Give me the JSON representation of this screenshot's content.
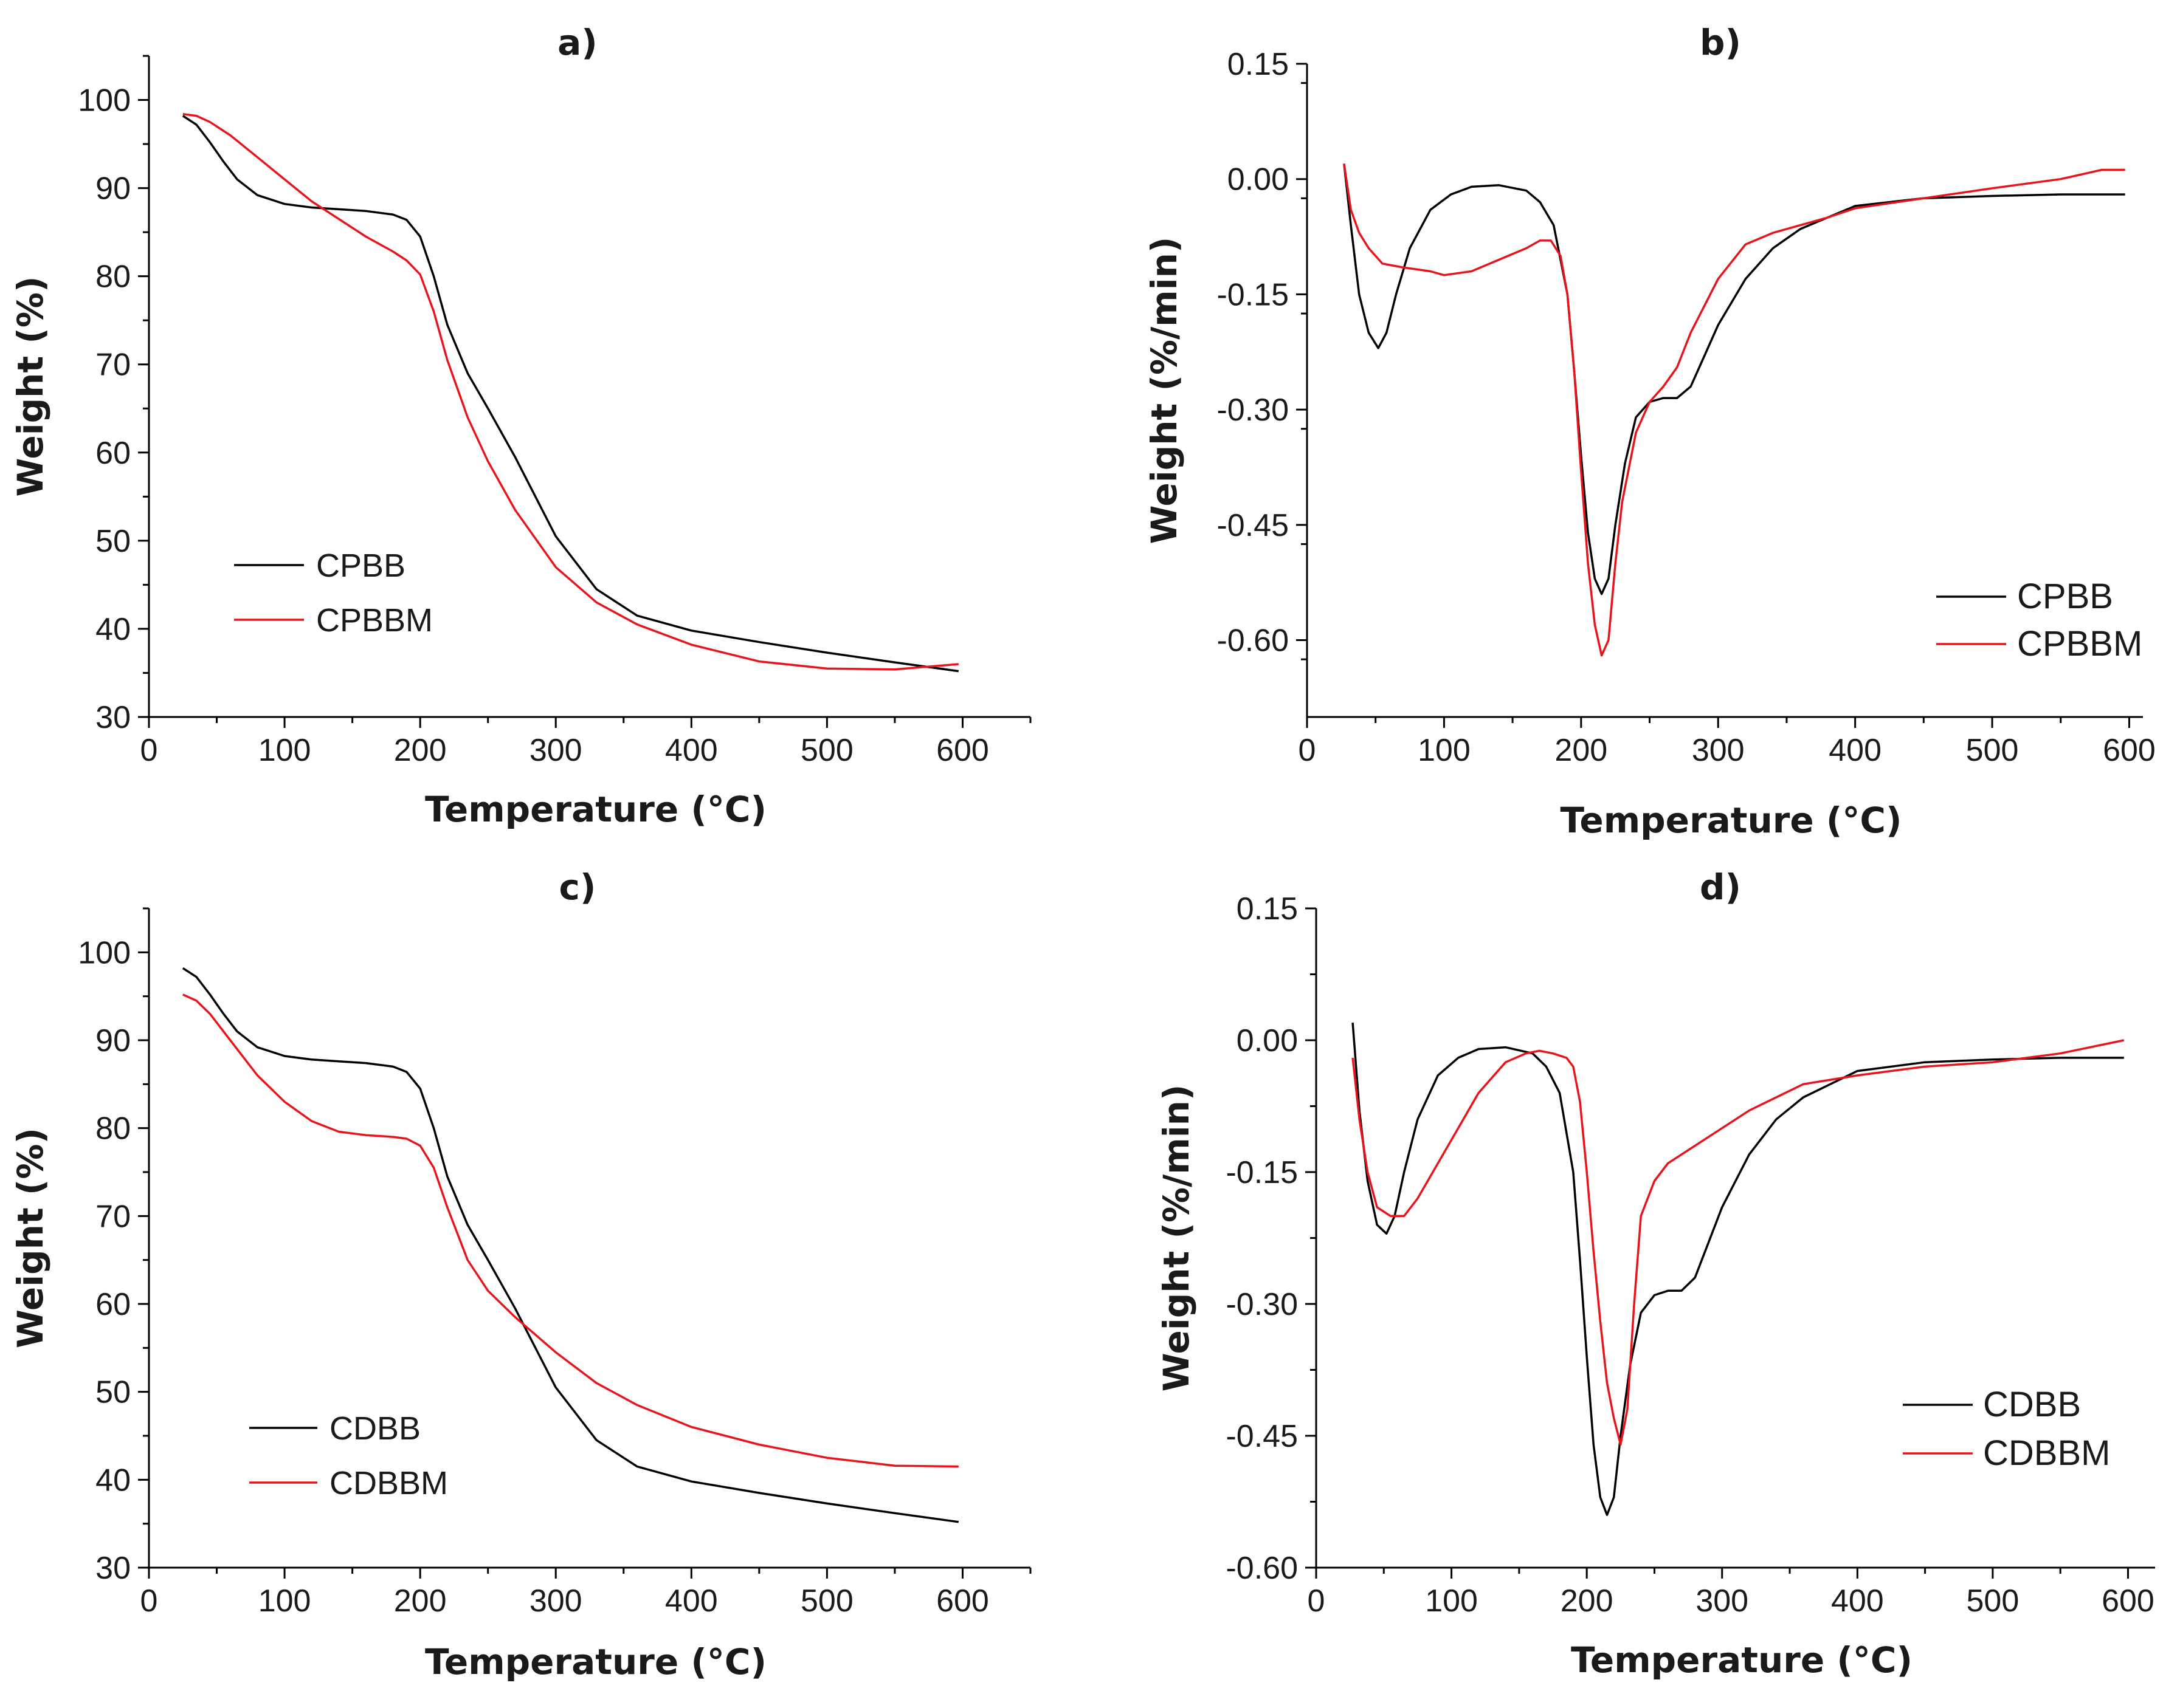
{
  "chart_data": [
    {
      "id": "a",
      "type": "line",
      "title": "a)",
      "xlabel": "Temperature (°C)",
      "ylabel": "Weight (%)",
      "xlim": [
        0,
        650
      ],
      "ylim": [
        30,
        105
      ],
      "xticks": [
        0,
        100,
        200,
        300,
        400,
        500,
        600
      ],
      "xtick_labels": [
        "0",
        "100",
        "200",
        "300",
        "400",
        "500",
        "600"
      ],
      "yticks": [
        30,
        40,
        50,
        60,
        70,
        80,
        90,
        100
      ],
      "ytick_labels": [
        "30",
        "40",
        "50",
        "60",
        "70",
        "80",
        "90",
        "100"
      ],
      "legend": "lower-left",
      "series": [
        {
          "name": "CPBB",
          "color": "#000000",
          "x": [
            25,
            35,
            45,
            55,
            65,
            80,
            100,
            120,
            140,
            160,
            180,
            190,
            200,
            210,
            220,
            235,
            250,
            270,
            300,
            330,
            360,
            400,
            450,
            500,
            550,
            597
          ],
          "y": [
            98.2,
            97.2,
            95.2,
            93.0,
            91.0,
            89.2,
            88.2,
            87.8,
            87.6,
            87.4,
            87.0,
            86.4,
            84.5,
            80.0,
            74.5,
            69.0,
            65.0,
            59.5,
            50.5,
            44.5,
            41.5,
            39.8,
            38.5,
            37.3,
            36.2,
            35.2
          ]
        },
        {
          "name": "CPBBM",
          "color": "#e8141c",
          "x": [
            25,
            35,
            45,
            60,
            80,
            100,
            120,
            140,
            160,
            180,
            190,
            200,
            210,
            220,
            235,
            250,
            270,
            300,
            330,
            360,
            400,
            450,
            500,
            550,
            597
          ],
          "y": [
            98.4,
            98.2,
            97.5,
            96.0,
            93.5,
            91.0,
            88.5,
            86.5,
            84.5,
            82.8,
            81.8,
            80.2,
            76.0,
            70.5,
            64.0,
            59.0,
            53.5,
            47.0,
            43.0,
            40.5,
            38.2,
            36.3,
            35.5,
            35.4,
            36.0
          ]
        }
      ]
    },
    {
      "id": "b",
      "type": "line",
      "title": "b)",
      "xlabel": "Temperature (°C)",
      "ylabel": "Weight (%/min)",
      "xlim": [
        0,
        610
      ],
      "ylim": [
        -0.7,
        0.15
      ],
      "xticks": [
        0,
        100,
        200,
        300,
        400,
        500,
        600
      ],
      "xtick_labels": [
        "0",
        "100",
        "200",
        "300",
        "400",
        "500",
        "600"
      ],
      "yticks": [
        0.15,
        0.0,
        -0.15,
        -0.3,
        -0.45,
        -0.6
      ],
      "ytick_labels": [
        "0.15",
        "0.00",
        "-0.15",
        "-0.30",
        "-0.45",
        "-0.60"
      ],
      "legend": "lower-right",
      "series": [
        {
          "name": "CPBB",
          "color": "#000000",
          "x": [
            27,
            32,
            38,
            45,
            52,
            58,
            65,
            75,
            90,
            105,
            120,
            140,
            160,
            170,
            180,
            190,
            195,
            200,
            205,
            210,
            215,
            220,
            225,
            232,
            240,
            250,
            260,
            270,
            280,
            290,
            300,
            320,
            340,
            360,
            380,
            400,
            450,
            500,
            550,
            597
          ],
          "y": [
            0.02,
            -0.06,
            -0.15,
            -0.2,
            -0.22,
            -0.2,
            -0.15,
            -0.09,
            -0.04,
            -0.02,
            -0.01,
            -0.008,
            -0.015,
            -0.03,
            -0.06,
            -0.15,
            -0.25,
            -0.36,
            -0.46,
            -0.52,
            -0.54,
            -0.52,
            -0.45,
            -0.37,
            -0.31,
            -0.29,
            -0.285,
            -0.285,
            -0.27,
            -0.23,
            -0.19,
            -0.13,
            -0.09,
            -0.065,
            -0.05,
            -0.035,
            -0.025,
            -0.022,
            -0.02,
            -0.02
          ]
        },
        {
          "name": "CPBBM",
          "color": "#e8141c",
          "x": [
            27,
            32,
            38,
            45,
            55,
            70,
            90,
            100,
            120,
            140,
            160,
            170,
            178,
            185,
            190,
            195,
            200,
            205,
            210,
            215,
            220,
            225,
            230,
            240,
            250,
            260,
            270,
            280,
            300,
            320,
            340,
            360,
            380,
            400,
            450,
            500,
            550,
            580,
            597
          ],
          "y": [
            0.02,
            -0.04,
            -0.07,
            -0.09,
            -0.11,
            -0.115,
            -0.12,
            -0.125,
            -0.12,
            -0.105,
            -0.09,
            -0.08,
            -0.08,
            -0.1,
            -0.15,
            -0.25,
            -0.38,
            -0.5,
            -0.58,
            -0.62,
            -0.6,
            -0.5,
            -0.42,
            -0.33,
            -0.29,
            -0.27,
            -0.245,
            -0.2,
            -0.13,
            -0.085,
            -0.07,
            -0.06,
            -0.05,
            -0.038,
            -0.025,
            -0.012,
            0.0,
            0.012,
            0.012
          ]
        }
      ]
    },
    {
      "id": "c",
      "type": "line",
      "title": "c)",
      "xlabel": "Temperature (°C)",
      "ylabel": "Weight (%)",
      "xlim": [
        0,
        650
      ],
      "ylim": [
        30,
        105
      ],
      "xticks": [
        0,
        100,
        200,
        300,
        400,
        500,
        600
      ],
      "xtick_labels": [
        "0",
        "100",
        "200",
        "300",
        "400",
        "500",
        "600"
      ],
      "yticks": [
        30,
        40,
        50,
        60,
        70,
        80,
        90,
        100
      ],
      "ytick_labels": [
        "30",
        "40",
        "50",
        "60",
        "70",
        "80",
        "90",
        "100"
      ],
      "legend": "lower-left",
      "series": [
        {
          "name": "CDBB",
          "color": "#000000",
          "x": [
            25,
            35,
            45,
            55,
            65,
            80,
            100,
            120,
            140,
            160,
            180,
            190,
            200,
            210,
            220,
            235,
            250,
            270,
            300,
            330,
            360,
            400,
            450,
            500,
            550,
            597
          ],
          "y": [
            98.2,
            97.2,
            95.2,
            93.0,
            91.0,
            89.2,
            88.2,
            87.8,
            87.6,
            87.4,
            87.0,
            86.4,
            84.5,
            80.0,
            74.5,
            69.0,
            65.0,
            59.5,
            50.5,
            44.5,
            41.5,
            39.8,
            38.5,
            37.3,
            36.2,
            35.2
          ]
        },
        {
          "name": "CDBBM",
          "color": "#e8141c",
          "x": [
            25,
            35,
            45,
            60,
            80,
            100,
            120,
            140,
            160,
            180,
            190,
            200,
            210,
            220,
            235,
            250,
            270,
            300,
            330,
            360,
            400,
            450,
            500,
            550,
            597
          ],
          "y": [
            95.2,
            94.5,
            93.0,
            90.0,
            86.0,
            83.0,
            80.8,
            79.6,
            79.2,
            79.0,
            78.8,
            78.0,
            75.5,
            71.0,
            65.0,
            61.5,
            58.5,
            54.5,
            51.0,
            48.5,
            46.0,
            44.0,
            42.5,
            41.6,
            41.5
          ]
        }
      ]
    },
    {
      "id": "d",
      "type": "line",
      "title": "d)",
      "xlabel": "Temperature (°C)",
      "ylabel": "Weight (%/min)",
      "xlim": [
        0,
        620
      ],
      "ylim": [
        -0.6,
        0.15
      ],
      "xticks": [
        0,
        100,
        200,
        300,
        400,
        500,
        600
      ],
      "xtick_labels": [
        "0",
        "100",
        "200",
        "300",
        "400",
        "500",
        "600"
      ],
      "yticks": [
        0.15,
        0.0,
        -0.15,
        -0.3,
        -0.45,
        -0.6
      ],
      "ytick_labels": [
        "0.15",
        "0.00",
        "-0.15",
        "-0.30",
        "-0.45",
        "-0.60"
      ],
      "legend": "lower-right",
      "series": [
        {
          "name": "CDBB",
          "color": "#000000",
          "x": [
            27,
            32,
            38,
            45,
            52,
            58,
            65,
            75,
            90,
            105,
            120,
            140,
            160,
            170,
            180,
            190,
            195,
            200,
            205,
            210,
            215,
            220,
            225,
            232,
            240,
            250,
            260,
            270,
            280,
            290,
            300,
            320,
            340,
            360,
            380,
            400,
            450,
            500,
            550,
            597
          ],
          "y": [
            0.02,
            -0.08,
            -0.16,
            -0.21,
            -0.22,
            -0.2,
            -0.15,
            -0.09,
            -0.04,
            -0.02,
            -0.01,
            -0.008,
            -0.015,
            -0.03,
            -0.06,
            -0.15,
            -0.25,
            -0.36,
            -0.46,
            -0.52,
            -0.54,
            -0.52,
            -0.45,
            -0.37,
            -0.31,
            -0.29,
            -0.285,
            -0.285,
            -0.27,
            -0.23,
            -0.19,
            -0.13,
            -0.09,
            -0.065,
            -0.05,
            -0.035,
            -0.025,
            -0.022,
            -0.02,
            -0.02
          ]
        },
        {
          "name": "CDBBM",
          "color": "#e8141c",
          "x": [
            27,
            32,
            38,
            45,
            55,
            65,
            75,
            90,
            105,
            120,
            140,
            155,
            165,
            175,
            185,
            190,
            195,
            200,
            205,
            210,
            215,
            220,
            225,
            230,
            235,
            240,
            250,
            260,
            280,
            300,
            320,
            340,
            360,
            380,
            400,
            450,
            500,
            550,
            597
          ],
          "y": [
            -0.02,
            -0.09,
            -0.15,
            -0.19,
            -0.2,
            -0.2,
            -0.18,
            -0.14,
            -0.1,
            -0.06,
            -0.025,
            -0.015,
            -0.012,
            -0.015,
            -0.02,
            -0.03,
            -0.07,
            -0.15,
            -0.24,
            -0.32,
            -0.39,
            -0.43,
            -0.46,
            -0.42,
            -0.3,
            -0.2,
            -0.16,
            -0.14,
            -0.12,
            -0.1,
            -0.08,
            -0.065,
            -0.05,
            -0.045,
            -0.04,
            -0.03,
            -0.025,
            -0.015,
            0.0
          ]
        }
      ]
    }
  ]
}
